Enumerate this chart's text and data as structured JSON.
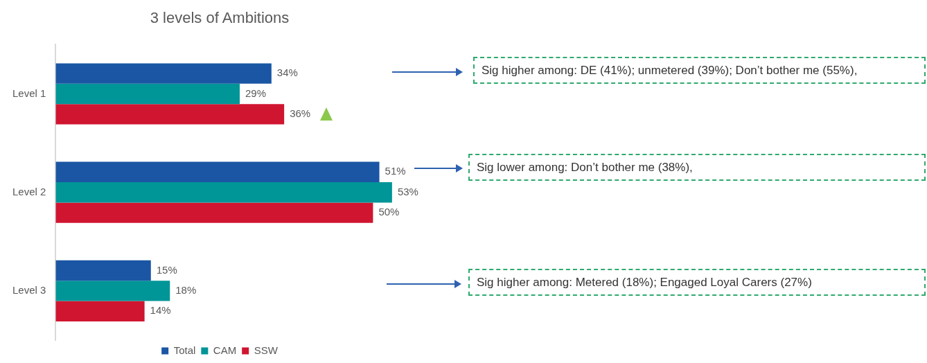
{
  "chart_data": {
    "type": "bar",
    "orientation": "horizontal",
    "title": "3 levels of Ambitions",
    "categories": [
      "Level 1",
      "Level 2",
      "Level 3"
    ],
    "series": [
      {
        "name": "Total",
        "color": "#1a56a4",
        "values": [
          34,
          51,
          15
        ],
        "value_labels": [
          "34%",
          "51%",
          "15%"
        ]
      },
      {
        "name": "CAM",
        "color": "#009597",
        "values": [
          29,
          53,
          18
        ],
        "value_labels": [
          "29%",
          "53%",
          "18%"
        ]
      },
      {
        "name": "SSW",
        "color": "#d01530",
        "values": [
          36,
          50,
          14
        ],
        "value_labels": [
          "36%",
          "50%",
          "14%"
        ]
      }
    ],
    "tick_labels": "y",
    "grid": false,
    "legend": "bottom",
    "annotations": [
      "Sig higher among: DE (41%); unmetered (39%); Don’t bother me (55%),",
      "Sig lower among: Don’t bother me (38%),",
      "Sig higher among: Metered (18%); Engaged Loyal Carers (27%)"
    ]
  }
}
